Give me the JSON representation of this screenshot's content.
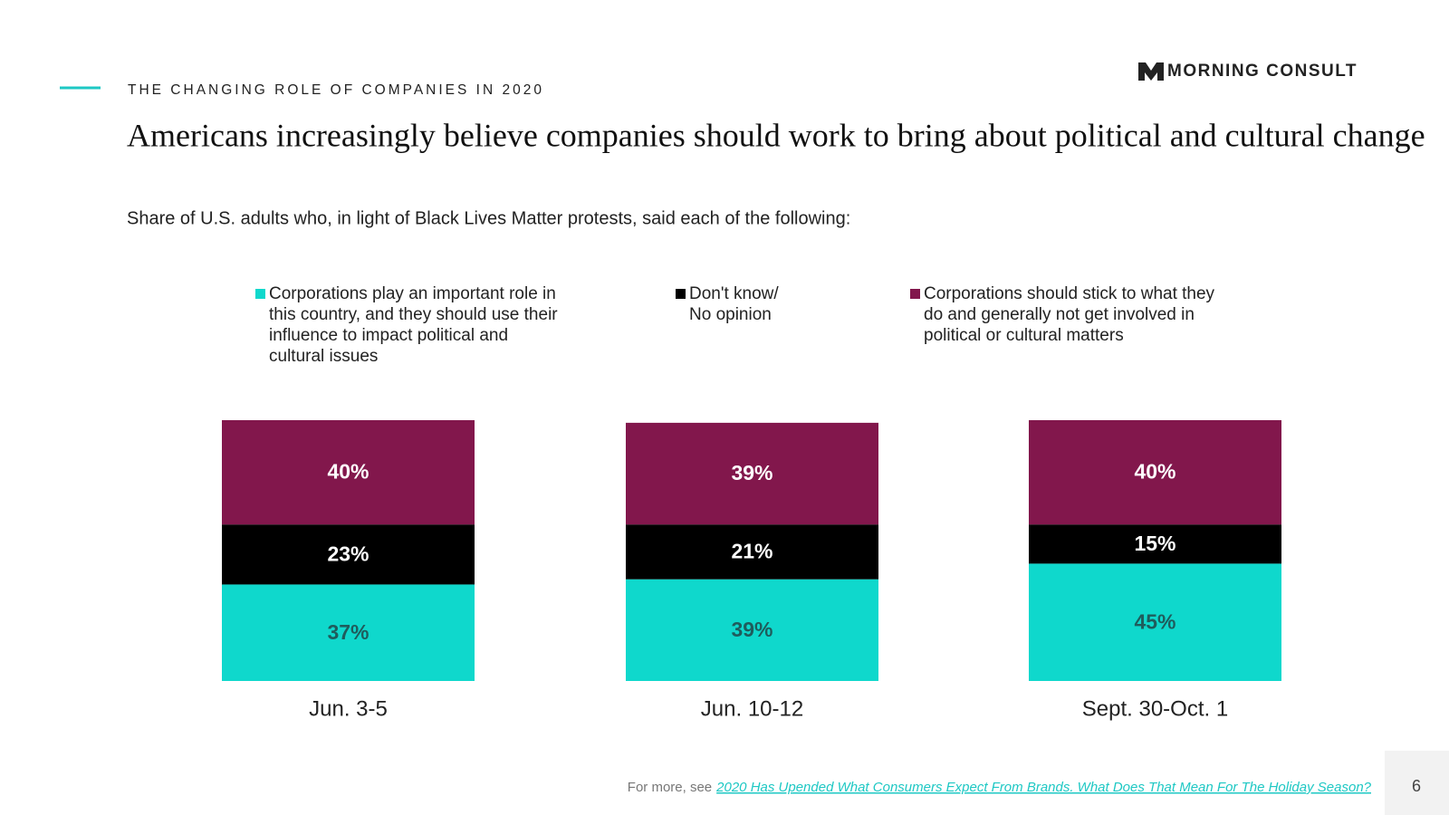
{
  "chart_data": {
    "type": "stacked_bar",
    "brand": "MORNING CONSULT",
    "kicker": "THE CHANGING ROLE OF COMPANIES IN 2020",
    "title": "Americans increasingly believe companies should work to bring about political and cultural change",
    "subtitle": "Share of U.S. adults who, in light of Black Lives Matter protests, said each of the following:",
    "categories": [
      "Jun. 3-5",
      "Jun. 10-12",
      "Sept. 30-Oct. 1"
    ],
    "ylim": [
      0,
      100
    ],
    "series": [
      {
        "name": "Corporations play an important role in this country, and they should use their influence to impact political and cultural issues",
        "color": "#0fd8cc",
        "values": [
          37,
          39,
          45
        ],
        "value_labels": [
          "37%",
          "39%",
          "45%"
        ]
      },
      {
        "name": "Don't know/ No opinion",
        "color": "#000000",
        "values": [
          23,
          21,
          15
        ],
        "value_labels": [
          "23%",
          "21%",
          "15%"
        ]
      },
      {
        "name": "Corporations should stick to what they do and generally not get involved in political or cultural matters",
        "color": "#82174c",
        "values": [
          40,
          39,
          40
        ],
        "value_labels": [
          "40%",
          "39%",
          "40%"
        ]
      }
    ],
    "footer": {
      "prefix": "For more, see",
      "link": "2020 Has Upended What Consumers Expect From Brands. What Does That Mean For The Holiday Season?"
    },
    "page_number": "6"
  }
}
